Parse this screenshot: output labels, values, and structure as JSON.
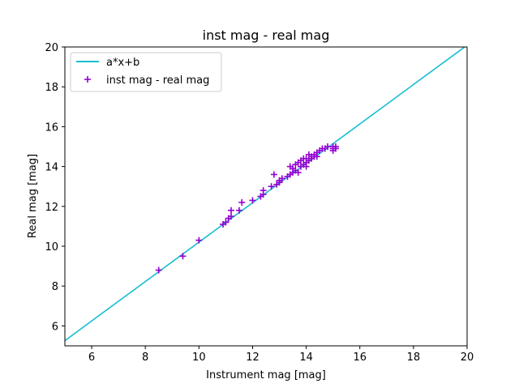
{
  "chart_data": {
    "type": "scatter",
    "title": "inst mag - real mag",
    "xlabel": "Instrument mag [mag]",
    "ylabel": "Real mag [mag]",
    "xlim": [
      5,
      20
    ],
    "ylim": [
      5,
      20
    ],
    "x_ticks": [
      6,
      8,
      10,
      12,
      14,
      16,
      18,
      20
    ],
    "y_ticks": [
      6,
      8,
      10,
      12,
      14,
      16,
      18,
      20
    ],
    "grid": false,
    "legend_position": "upper-left",
    "series": [
      {
        "name": "a*x+b",
        "kind": "line",
        "color": "#17becf",
        "x": [
          5,
          20
        ],
        "y": [
          5.26,
          20.09
        ]
      },
      {
        "name": "inst mag - real mag",
        "kind": "scatter",
        "marker": "+",
        "color": "#9400d3",
        "x": [
          8.5,
          9.4,
          10.0,
          10.9,
          11.0,
          11.1,
          11.2,
          11.2,
          11.5,
          11.6,
          12.0,
          12.3,
          12.4,
          12.4,
          12.7,
          12.8,
          12.9,
          13.0,
          13.0,
          13.1,
          13.3,
          13.4,
          13.4,
          13.5,
          13.5,
          13.6,
          13.6,
          13.7,
          13.7,
          13.8,
          13.8,
          13.9,
          13.9,
          14.0,
          14.0,
          14.0,
          14.1,
          14.1,
          14.2,
          14.2,
          14.3,
          14.3,
          14.4,
          14.4,
          14.5,
          14.6,
          14.7,
          14.8,
          15.0,
          15.0,
          15.0,
          15.1,
          15.1
        ],
        "y": [
          8.8,
          9.5,
          10.3,
          11.1,
          11.2,
          11.4,
          11.8,
          11.5,
          11.8,
          12.2,
          12.3,
          12.5,
          12.6,
          12.8,
          13.0,
          13.6,
          13.1,
          13.3,
          13.2,
          13.4,
          13.5,
          13.6,
          14.0,
          13.7,
          13.9,
          13.8,
          14.1,
          13.7,
          14.2,
          14.0,
          14.3,
          14.1,
          14.4,
          14.0,
          14.2,
          14.4,
          14.3,
          14.6,
          14.4,
          14.5,
          14.6,
          14.5,
          14.7,
          14.5,
          14.8,
          14.9,
          14.9,
          15.0,
          14.9,
          14.8,
          15.0,
          14.9,
          15.0
        ]
      }
    ]
  }
}
